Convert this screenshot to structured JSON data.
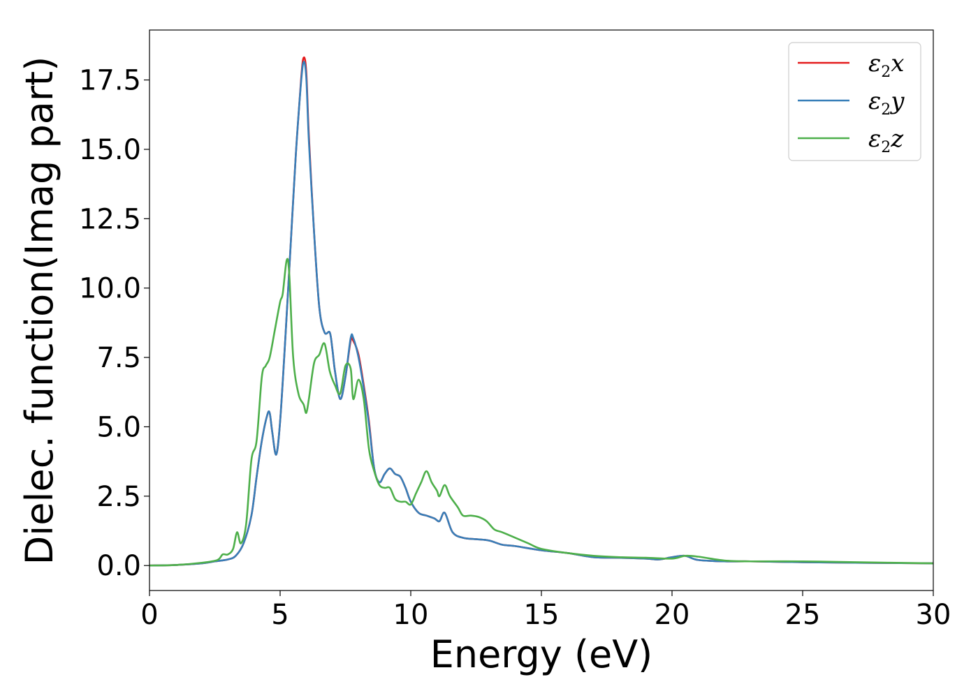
{
  "chart_data": {
    "type": "line",
    "xlabel": "Energy (eV)",
    "ylabel": "Dielec. function(Imag part)",
    "xlim": [
      0,
      30
    ],
    "ylim": [
      -0.9,
      19.3
    ],
    "xticks": [
      0,
      5,
      10,
      15,
      20,
      25,
      30
    ],
    "xtick_labels": [
      "0",
      "5",
      "10",
      "15",
      "20",
      "25",
      "30"
    ],
    "yticks": [
      0.0,
      2.5,
      5.0,
      7.5,
      10.0,
      12.5,
      15.0,
      17.5
    ],
    "ytick_labels": [
      "0.0",
      "2.5",
      "5.0",
      "7.5",
      "10.0",
      "12.5",
      "15.0",
      "17.5"
    ],
    "grid": false,
    "legend_position": "top-right",
    "series": [
      {
        "name": "x",
        "legend_base": "ε",
        "legend_sub": "2",
        "legend_var": "x",
        "color": "#e41a1c",
        "x": [
          0,
          1,
          2,
          2.5,
          3,
          3.3,
          3.6,
          3.9,
          4.1,
          4.3,
          4.5,
          4.6,
          4.7,
          4.85,
          5,
          5.2,
          5.4,
          5.6,
          5.8,
          5.9,
          6.0,
          6.1,
          6.3,
          6.5,
          6.7,
          6.9,
          7.0,
          7.1,
          7.3,
          7.5,
          7.7,
          7.8,
          8.0,
          8.2,
          8.4,
          8.6,
          8.8,
          9.0,
          9.2,
          9.4,
          9.6,
          9.8,
          10.0,
          10.3,
          10.6,
          10.9,
          11.1,
          11.3,
          11.6,
          12.0,
          12.5,
          13.0,
          13.5,
          14,
          15,
          16,
          17,
          18,
          19,
          19.5,
          20,
          20.5,
          21,
          22,
          23,
          25,
          27,
          30
        ],
        "y": [
          0,
          0.02,
          0.08,
          0.15,
          0.22,
          0.35,
          0.8,
          1.8,
          3.2,
          4.5,
          5.4,
          5.5,
          4.8,
          4.0,
          5.2,
          8.2,
          11.5,
          14.8,
          17.5,
          18.3,
          17.8,
          15.5,
          12.0,
          9.3,
          8.4,
          8.4,
          7.8,
          7.0,
          6.0,
          6.8,
          8.1,
          8.1,
          7.6,
          6.5,
          5.2,
          3.5,
          3.0,
          3.3,
          3.5,
          3.3,
          3.2,
          2.8,
          2.3,
          1.9,
          1.8,
          1.7,
          1.6,
          1.9,
          1.2,
          1.0,
          0.95,
          0.9,
          0.75,
          0.7,
          0.55,
          0.45,
          0.3,
          0.28,
          0.25,
          0.22,
          0.3,
          0.35,
          0.2,
          0.15,
          0.15,
          0.12,
          0.1,
          0.08
        ]
      },
      {
        "name": "y",
        "legend_base": "ε",
        "legend_sub": "2",
        "legend_var": "y",
        "color": "#377eb8",
        "x": [
          0,
          1,
          2,
          2.5,
          3,
          3.3,
          3.6,
          3.9,
          4.1,
          4.3,
          4.5,
          4.6,
          4.7,
          4.85,
          5,
          5.2,
          5.4,
          5.6,
          5.8,
          5.9,
          6.0,
          6.1,
          6.3,
          6.5,
          6.7,
          6.9,
          7.0,
          7.1,
          7.3,
          7.5,
          7.7,
          7.8,
          8.0,
          8.2,
          8.4,
          8.6,
          8.8,
          9.0,
          9.2,
          9.4,
          9.6,
          9.8,
          10.0,
          10.3,
          10.6,
          10.9,
          11.1,
          11.3,
          11.6,
          12.0,
          12.5,
          13.0,
          13.5,
          14,
          15,
          16,
          17,
          18,
          19,
          19.5,
          20,
          20.5,
          21,
          22,
          23,
          25,
          27,
          30
        ],
        "y": [
          0,
          0.02,
          0.08,
          0.15,
          0.22,
          0.35,
          0.8,
          1.8,
          3.2,
          4.5,
          5.4,
          5.5,
          4.8,
          4.0,
          5.2,
          8.2,
          11.5,
          14.8,
          17.4,
          18.15,
          17.6,
          15.3,
          12.0,
          9.3,
          8.4,
          8.4,
          7.8,
          7.0,
          6.0,
          6.8,
          8.2,
          8.2,
          7.5,
          6.4,
          5.1,
          3.5,
          3.0,
          3.3,
          3.5,
          3.3,
          3.2,
          2.8,
          2.3,
          1.9,
          1.8,
          1.7,
          1.6,
          1.9,
          1.2,
          1.0,
          0.95,
          0.9,
          0.75,
          0.7,
          0.55,
          0.45,
          0.3,
          0.28,
          0.25,
          0.22,
          0.3,
          0.35,
          0.2,
          0.15,
          0.15,
          0.12,
          0.1,
          0.08
        ]
      },
      {
        "name": "z",
        "legend_base": "ε",
        "legend_sub": "2",
        "legend_var": "z",
        "color": "#4daf4a",
        "x": [
          0,
          1,
          2,
          2.6,
          2.8,
          3.0,
          3.2,
          3.35,
          3.5,
          3.7,
          3.9,
          4.1,
          4.3,
          4.45,
          4.6,
          4.8,
          5.0,
          5.1,
          5.25,
          5.35,
          5.5,
          5.7,
          5.9,
          6.0,
          6.1,
          6.3,
          6.5,
          6.7,
          6.9,
          7.1,
          7.3,
          7.5,
          7.7,
          7.8,
          8.0,
          8.2,
          8.4,
          8.6,
          8.8,
          9.0,
          9.2,
          9.4,
          9.6,
          9.8,
          10.0,
          10.2,
          10.4,
          10.6,
          10.8,
          11.0,
          11.1,
          11.3,
          11.5,
          11.8,
          12.0,
          12.3,
          12.6,
          12.9,
          13.2,
          13.5,
          14,
          14.5,
          15,
          16,
          17,
          18,
          19,
          20,
          20.5,
          21,
          22,
          23,
          25,
          27,
          30
        ],
        "y": [
          0,
          0.02,
          0.1,
          0.2,
          0.4,
          0.4,
          0.6,
          1.2,
          0.8,
          1.5,
          3.8,
          4.5,
          6.8,
          7.2,
          7.5,
          8.5,
          9.5,
          9.8,
          11.0,
          10.5,
          7.5,
          6.2,
          5.8,
          5.5,
          6.0,
          7.3,
          7.6,
          8.0,
          7.0,
          6.5,
          6.2,
          7.2,
          7.1,
          6.0,
          6.7,
          6.0,
          4.2,
          3.4,
          2.9,
          2.8,
          2.8,
          2.4,
          2.3,
          2.3,
          2.2,
          2.6,
          3.0,
          3.4,
          3.0,
          2.7,
          2.5,
          2.9,
          2.5,
          2.1,
          1.8,
          1.8,
          1.75,
          1.6,
          1.3,
          1.2,
          1.0,
          0.8,
          0.6,
          0.45,
          0.35,
          0.3,
          0.28,
          0.25,
          0.35,
          0.32,
          0.18,
          0.15,
          0.15,
          0.12,
          0.08
        ]
      }
    ]
  }
}
